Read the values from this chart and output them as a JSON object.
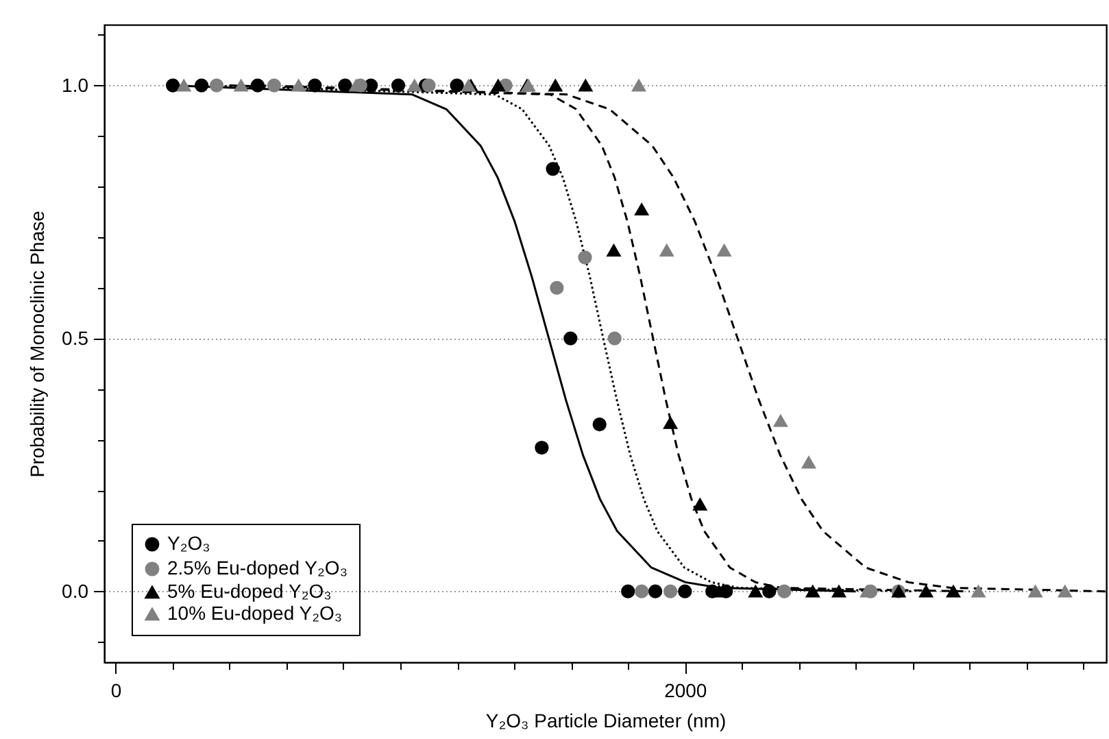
{
  "chart_data": {
    "type": "scatter",
    "xlabel": "Y₂O₃ Particle Diameter (nm)",
    "ylabel": "Probability of Monoclinic Phase",
    "xlim": [
      -40,
      3480
    ],
    "ylim": [
      -0.14,
      1.12
    ],
    "xticks": [
      0,
      {
        "value": 200,
        "label": null
      },
      {
        "value": 400,
        "label": null
      },
      {
        "value": 600,
        "label": null
      },
      {
        "value": 800,
        "label": null
      },
      {
        "value": 1000,
        "label": null
      },
      {
        "value": 1200,
        "label": null
      },
      {
        "value": 1400,
        "label": null
      },
      {
        "value": 1600,
        "label": null
      },
      {
        "value": 1800,
        "label": null
      },
      2000,
      {
        "value": 2200,
        "label": null
      },
      {
        "value": 2400,
        "label": null
      },
      {
        "value": 2600,
        "label": null
      },
      {
        "value": 2800,
        "label": null
      },
      {
        "value": 3000,
        "label": null
      },
      {
        "value": 3200,
        "label": null
      },
      {
        "value": 3400,
        "label": null
      }
    ],
    "yticks": [
      {
        "value": -0.1,
        "label": null
      },
      {
        "value": 0,
        "label": "0.0"
      },
      {
        "value": 0.1,
        "label": null
      },
      {
        "value": 0.2,
        "label": null
      },
      {
        "value": 0.3,
        "label": null
      },
      {
        "value": 0.4,
        "label": null
      },
      {
        "value": 0.5,
        "label": "0.5"
      },
      {
        "value": 0.6,
        "label": null
      },
      {
        "value": 0.7,
        "label": null
      },
      {
        "value": 0.8,
        "label": null
      },
      {
        "value": 0.9,
        "label": null
      },
      {
        "value": 1,
        "label": "1.0"
      },
      {
        "value": 1.1,
        "label": null
      }
    ],
    "grid": "y",
    "legend": "bottom left",
    "series": [
      {
        "name": "Y₂O₃",
        "marker": "circle",
        "color": "#000000",
        "x": [
          201,
          302,
          499,
          700,
          806,
          897,
          993,
          1089,
          1199,
          1497,
          1536,
          1598,
          1700,
          1800,
          1896,
          2000,
          2096,
          2144,
          2296
        ],
        "values": [
          1,
          1,
          1,
          1,
          1,
          1,
          1,
          1,
          1,
          0.284,
          0.835,
          0.5,
          0.33,
          0,
          0,
          0,
          0,
          0,
          0
        ]
      },
      {
        "name": "2.5% Eu-doped Y₂O₃",
        "marker": "circle",
        "color": "#808080",
        "x": [
          355,
          557,
          860,
          1100,
          1370,
          1550,
          1649,
          1753,
          1848,
          1949,
          2349,
          2652,
          2750
        ],
        "values": [
          1,
          1,
          1,
          1,
          1,
          0.6,
          0.66,
          0.5,
          0,
          0,
          0,
          0,
          0
        ]
      },
      {
        "name": "5% Eu-doped Y₂O₃",
        "marker": "triangle",
        "color": "#000000",
        "x": [
          1248,
          1344,
          1445,
          1545,
          1651,
          1750,
          1848,
          1949,
          2053,
          2120,
          2248,
          2449,
          2541,
          2751,
          2847,
          2943
        ],
        "values": [
          1,
          1,
          1,
          1,
          1,
          0.674,
          0.755,
          0.333,
          0.172,
          0,
          0,
          0,
          0,
          0,
          0,
          0
        ]
      },
      {
        "name": "10% Eu-doped Y₂O₃",
        "marker": "triangle",
        "color": "#808080",
        "x": [
          240,
          441,
          643,
          845,
          1050,
          1240,
          1450,
          1838,
          1936,
          2138,
          2336,
          2435,
          2640,
          3031,
          3231,
          3335
        ],
        "values": [
          1,
          1,
          1,
          1,
          1,
          1,
          1,
          1,
          0.674,
          0.674,
          0.337,
          0.255,
          0,
          0,
          0,
          0
        ]
      },
      {
        "type": "line",
        "line_style": "solid",
        "color": "#000000",
        "x": [
          200,
          1042,
          1162,
          1282,
          1342,
          1402,
          1462,
          1522,
          1582,
          1642,
          1702,
          1762,
          1882,
          2002,
          2122,
          2600
        ],
        "values": [
          1,
          0.982,
          0.953,
          0.881,
          0.818,
          0.731,
          0.622,
          0.5,
          0.378,
          0.269,
          0.182,
          0.119,
          0.047,
          0.018,
          0.007,
          0
        ]
      },
      {
        "type": "line",
        "line_style": "dotted",
        "color": "#000000",
        "x": [
          300,
          1333,
          1428,
          1523,
          1571,
          1618,
          1666,
          1713,
          1761,
          1808,
          1856,
          1903,
          1998,
          2093,
          2188,
          2800
        ],
        "values": [
          1,
          0.982,
          0.953,
          0.881,
          0.818,
          0.731,
          0.622,
          0.5,
          0.378,
          0.269,
          0.182,
          0.119,
          0.047,
          0.018,
          0.007,
          0
        ]
      },
      {
        "type": "line",
        "line_style": "dashed",
        "color": "#000000",
        "x": [
          400,
          1528,
          1618,
          1708,
          1753,
          1798,
          1843,
          1888,
          1933,
          1978,
          2023,
          2068,
          2158,
          2248,
          2338,
          3000
        ],
        "values": [
          1,
          0.982,
          0.953,
          0.881,
          0.818,
          0.731,
          0.622,
          0.5,
          0.378,
          0.269,
          0.182,
          0.119,
          0.047,
          0.018,
          0.007,
          0
        ]
      },
      {
        "type": "line",
        "line_style": "dashed",
        "color": "#000000",
        "x": [
          500,
          1585,
          1735,
          1885,
          1960,
          2035,
          2110,
          2185,
          2260,
          2335,
          2410,
          2485,
          2635,
          2785,
          2935,
          3480
        ],
        "values": [
          1,
          0.982,
          0.953,
          0.881,
          0.818,
          0.731,
          0.622,
          0.5,
          0.378,
          0.269,
          0.182,
          0.119,
          0.047,
          0.018,
          0.007,
          0
        ]
      }
    ]
  }
}
